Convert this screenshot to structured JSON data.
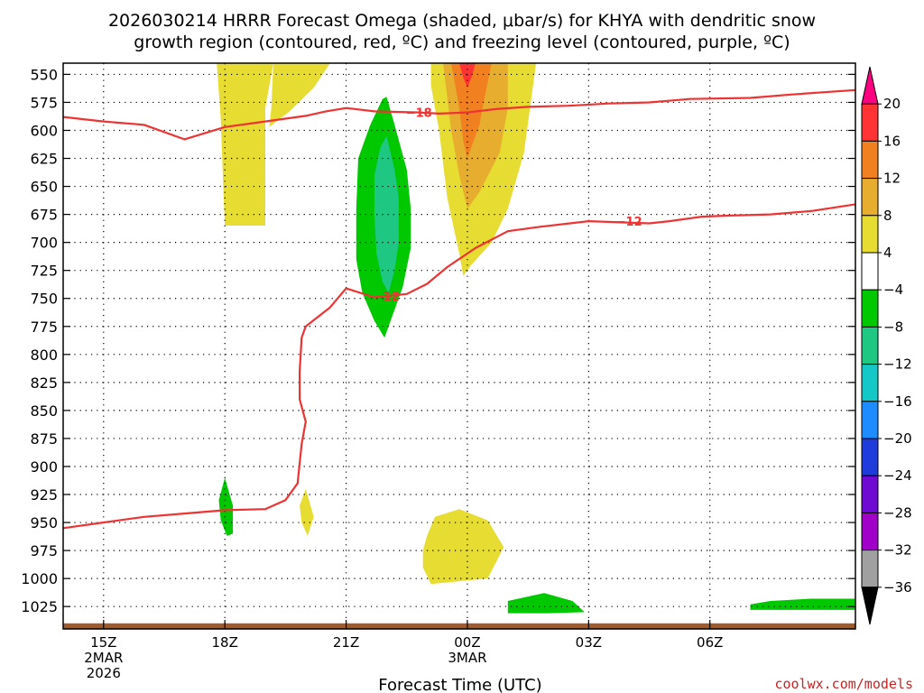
{
  "title": {
    "line1": "2026030214 HRRR Forecast Omega (shaded, μbar/s) for KHYA with dendritic snow",
    "line2": "growth region (contoured, red, ºC) and freezing level (contoured, purple, ºC)"
  },
  "credit": "coolwx.com/models",
  "chart_data": {
    "type": "contour",
    "title": "2026030214 HRRR Forecast Omega (shaded, μbar/s) for KHYA with dendritic snow growth region (contoured, red, ºC) and freezing level (contoured, purple, ºC)",
    "xlabel": "Forecast Time (UTC)",
    "ylabel": "",
    "x_unit": "hours from 2026-03-02 14Z",
    "xlim": [
      14.0,
      33.6
    ],
    "ylim": [
      1045,
      540
    ],
    "y_scale": "pressure (hPa), increasing downward",
    "y_ticks": [
      550,
      575,
      600,
      625,
      650,
      675,
      700,
      725,
      750,
      775,
      800,
      825,
      850,
      875,
      900,
      925,
      950,
      975,
      1000,
      1025
    ],
    "x_ticks": [
      {
        "hour": 15,
        "label": "15Z",
        "sub1": "2MAR",
        "sub2": "2026"
      },
      {
        "hour": 18,
        "label": "18Z",
        "sub1": "",
        "sub2": ""
      },
      {
        "hour": 21,
        "label": "21Z",
        "sub1": "",
        "sub2": ""
      },
      {
        "hour": 24,
        "label": "00Z",
        "sub1": "3MAR",
        "sub2": ""
      },
      {
        "hour": 27,
        "label": "03Z",
        "sub1": "",
        "sub2": ""
      },
      {
        "hour": 30,
        "label": "06Z",
        "sub1": "",
        "sub2": ""
      }
    ],
    "grid": true,
    "colorbar": {
      "placement": "right",
      "levels": [
        "20",
        "16",
        "12",
        "8",
        "4",
        "−4",
        "−8",
        "−12",
        "−16",
        "−20",
        "−24",
        "−28",
        "−32",
        "−36"
      ],
      "colors": [
        "#ff0080",
        "#ff3333",
        "#f08020",
        "#e6ad2f",
        "#e6dc32",
        "#ffffff",
        "#00c800",
        "#1ec882",
        "#14c8c8",
        "#1e8cff",
        "#1e3cdc",
        "#6e0ad2",
        "#a000c8",
        "#a0a0a0",
        "#000000"
      ]
    },
    "omega_regions": [
      {
        "name": "left-upper",
        "value_range": [
          4,
          8
        ],
        "color": "#e6dc32",
        "points": [
          [
            17.8,
            540
          ],
          [
            19.2,
            540
          ],
          [
            19.0,
            580
          ],
          [
            19.0,
            597
          ],
          [
            19.0,
            685
          ],
          [
            18.0,
            685
          ],
          [
            17.95,
            640
          ],
          [
            17.9,
            590
          ]
        ]
      },
      {
        "name": "mid-upper",
        "value_range": [
          4,
          8
        ],
        "color": "#e6dc32",
        "points": [
          [
            19.1,
            597
          ],
          [
            19.6,
            583
          ],
          [
            20.2,
            562
          ],
          [
            20.6,
            540
          ],
          [
            19.2,
            540
          ],
          [
            19.15,
            580
          ]
        ]
      },
      {
        "name": "right-column",
        "value_range": [
          4,
          8
        ],
        "color": "#e6dc32",
        "points": [
          [
            23.1,
            540
          ],
          [
            25.7,
            540
          ],
          [
            25.4,
            620
          ],
          [
            25.0,
            670
          ],
          [
            24.6,
            700
          ],
          [
            24.1,
            720
          ],
          [
            23.9,
            730
          ],
          [
            23.8,
            710
          ],
          [
            23.5,
            660
          ],
          [
            23.3,
            600
          ],
          [
            23.1,
            560
          ]
        ]
      },
      {
        "name": "right-column",
        "value_range": [
          8,
          12
        ],
        "color": "#e6ad2f",
        "points": [
          [
            23.4,
            540
          ],
          [
            25.0,
            540
          ],
          [
            25.0,
            580
          ],
          [
            24.8,
            620
          ],
          [
            24.3,
            655
          ],
          [
            24.0,
            670
          ],
          [
            23.8,
            640
          ],
          [
            23.6,
            600
          ],
          [
            23.5,
            570
          ]
        ]
      },
      {
        "name": "right-column",
        "value_range": [
          12,
          16
        ],
        "color": "#f08020",
        "points": [
          [
            23.6,
            540
          ],
          [
            24.6,
            540
          ],
          [
            24.4,
            575
          ],
          [
            24.3,
            595
          ],
          [
            24.1,
            615
          ],
          [
            24.0,
            625
          ],
          [
            23.9,
            610
          ],
          [
            23.8,
            580
          ],
          [
            23.7,
            560
          ]
        ]
      },
      {
        "name": "right-column",
        "value_range": [
          16,
          20
        ],
        "color": "#ff3333",
        "points": [
          [
            23.8,
            540
          ],
          [
            24.2,
            540
          ],
          [
            24.1,
            553
          ],
          [
            24.0,
            562
          ],
          [
            23.9,
            553
          ]
        ]
      },
      {
        "name": "descent-core",
        "value_range": [
          -8,
          -4
        ],
        "color": "#00c800",
        "points": [
          [
            22.0,
            570
          ],
          [
            22.2,
            595
          ],
          [
            22.5,
            635
          ],
          [
            22.6,
            670
          ],
          [
            22.6,
            705
          ],
          [
            22.4,
            740
          ],
          [
            22.1,
            770
          ],
          [
            21.95,
            785
          ],
          [
            21.7,
            770
          ],
          [
            21.4,
            745
          ],
          [
            21.25,
            715
          ],
          [
            21.25,
            670
          ],
          [
            21.3,
            625
          ],
          [
            21.6,
            595
          ],
          [
            21.9,
            572
          ]
        ]
      },
      {
        "name": "descent-core",
        "value_range": [
          -12,
          -8
        ],
        "color": "#1ec882",
        "points": [
          [
            22.0,
            605
          ],
          [
            22.2,
            635
          ],
          [
            22.3,
            660
          ],
          [
            22.3,
            700
          ],
          [
            22.2,
            725
          ],
          [
            22.05,
            745
          ],
          [
            21.9,
            735
          ],
          [
            21.75,
            710
          ],
          [
            21.7,
            675
          ],
          [
            21.7,
            640
          ],
          [
            21.85,
            615
          ]
        ]
      },
      {
        "name": "low-green-18z",
        "value_range": [
          -8,
          -4
        ],
        "color": "#00c800",
        "points": [
          [
            18.0,
            910
          ],
          [
            18.2,
            935
          ],
          [
            18.2,
            960
          ],
          [
            18.05,
            962
          ],
          [
            17.9,
            948
          ],
          [
            17.85,
            930
          ]
        ]
      },
      {
        "name": "low-yellow-20z",
        "value_range": [
          4,
          8
        ],
        "color": "#e6dc32",
        "points": [
          [
            20.0,
            920
          ],
          [
            20.2,
            945
          ],
          [
            20.05,
            962
          ],
          [
            19.9,
            950
          ],
          [
            19.85,
            935
          ]
        ]
      },
      {
        "name": "low-yellow-23z",
        "value_range": [
          4,
          8
        ],
        "color": "#e6dc32",
        "points": [
          [
            23.2,
            945
          ],
          [
            23.8,
            938
          ],
          [
            24.5,
            948
          ],
          [
            24.9,
            972
          ],
          [
            24.5,
            1000
          ],
          [
            23.9,
            1002
          ],
          [
            23.1,
            1005
          ],
          [
            22.9,
            990
          ],
          [
            22.9,
            975
          ],
          [
            23.0,
            962
          ]
        ]
      },
      {
        "name": "low-green-01z",
        "value_range": [
          -8,
          -4
        ],
        "color": "#00c800",
        "points": [
          [
            25.0,
            1020
          ],
          [
            25.9,
            1013
          ],
          [
            26.6,
            1020
          ],
          [
            26.9,
            1030
          ],
          [
            26.0,
            1031
          ],
          [
            25.0,
            1031
          ]
        ]
      },
      {
        "name": "low-green-08z",
        "value_range": [
          -8,
          -4
        ],
        "color": "#00c800",
        "points": [
          [
            31.0,
            1023
          ],
          [
            31.5,
            1020
          ],
          [
            32.5,
            1018
          ],
          [
            33.6,
            1018
          ],
          [
            33.6,
            1028
          ],
          [
            32.0,
            1028
          ],
          [
            31.0,
            1028
          ]
        ]
      }
    ],
    "temperature_contours": [
      {
        "value": -18,
        "label": "−18",
        "color": "#ee3333",
        "label_at": [
          21.5,
          590
        ],
        "points": [
          [
            14.0,
            588
          ],
          [
            15.0,
            592
          ],
          [
            16.0,
            595
          ],
          [
            17.0,
            608
          ],
          [
            18.0,
            597
          ],
          [
            19.0,
            592
          ],
          [
            20.0,
            587
          ],
          [
            20.5,
            583
          ],
          [
            21.0,
            580
          ],
          [
            21.7,
            583
          ],
          [
            22.8,
            584
          ],
          [
            23.3,
            585
          ],
          [
            24.0,
            584
          ],
          [
            24.7,
            581
          ],
          [
            25.5,
            579
          ],
          [
            26.5,
            578
          ],
          [
            27.5,
            576
          ],
          [
            28.5,
            575
          ],
          [
            29.5,
            572
          ],
          [
            31.0,
            571
          ],
          [
            32.0,
            568
          ],
          [
            33.6,
            564
          ]
        ]
      },
      {
        "value": -12,
        "label": "−12",
        "color": "#ee3333",
        "label_at": [
          22.0,
          747
        ],
        "points": [
          [
            14.0,
            955
          ],
          [
            15.0,
            950
          ],
          [
            16.0,
            945
          ],
          [
            17.0,
            942
          ],
          [
            18.0,
            939
          ],
          [
            19.0,
            938
          ],
          [
            19.5,
            930
          ],
          [
            19.8,
            915
          ],
          [
            19.9,
            880
          ],
          [
            20.0,
            860
          ],
          [
            19.85,
            840
          ],
          [
            19.85,
            815
          ],
          [
            19.9,
            785
          ],
          [
            20.0,
            775
          ],
          [
            20.6,
            758
          ],
          [
            21.0,
            741
          ],
          [
            21.7,
            749
          ],
          [
            22.5,
            746
          ],
          [
            23.0,
            737
          ],
          [
            23.5,
            722
          ],
          [
            24.2,
            705
          ],
          [
            25.0,
            690
          ],
          [
            25.8,
            686
          ],
          [
            27.0,
            681
          ],
          [
            28.5,
            683
          ],
          [
            29.0,
            681
          ],
          [
            29.8,
            677
          ],
          [
            30.5,
            676
          ],
          [
            31.5,
            675
          ],
          [
            32.5,
            672
          ],
          [
            33.6,
            666
          ]
        ]
      }
    ],
    "contour_labels": [
      {
        "value": -18,
        "text": "−18",
        "x": 22.8,
        "y": 584
      },
      {
        "value": -12,
        "text": "−12",
        "x": 22.0,
        "y": 748
      },
      {
        "value": -12,
        "text": "−12",
        "x": 28.0,
        "y": 681
      }
    ],
    "ground_level_hpa": 1040
  }
}
